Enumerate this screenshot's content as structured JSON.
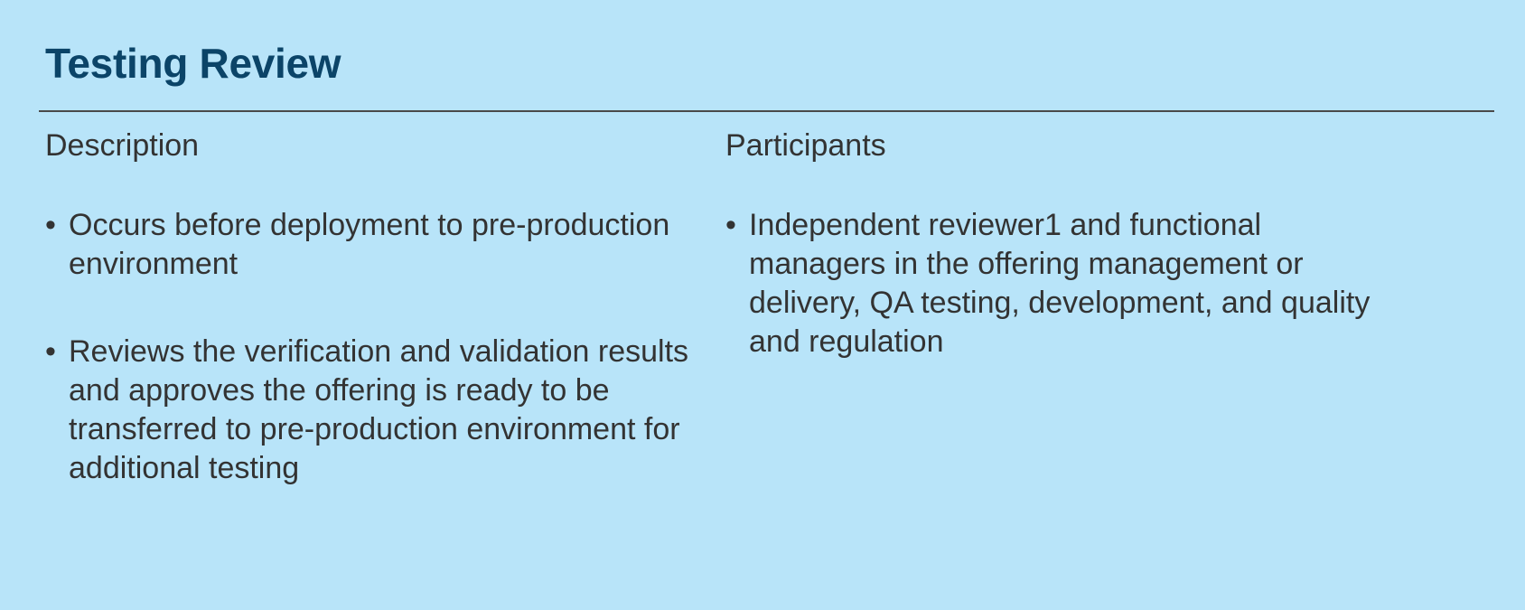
{
  "title": "Testing Review",
  "description": {
    "heading": "Description",
    "bullet_glyph": "•",
    "items": [
      {
        "text": "Occurs before deployment to pre-production environment"
      },
      {
        "text": "Reviews the verification and validation results and approves the offering is ready to be transferred to pre-production environment for additional testing"
      }
    ]
  },
  "participants": {
    "heading": "Participants",
    "bullet_glyph": "•",
    "items": [
      {
        "text": "Independent reviewer1 and functional managers in the offering management or delivery, QA testing, development, and quality and regulation"
      }
    ]
  },
  "colors": {
    "background": "#b8e4f9",
    "title": "#0b4468",
    "text": "#333333",
    "rule": "#4a4a4a"
  }
}
